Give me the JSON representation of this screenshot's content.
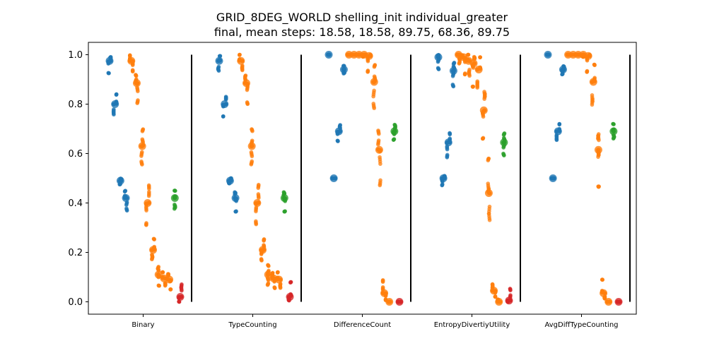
{
  "chart_data": {
    "type": "scatter",
    "title_lines": [
      "GRID_8DEG_WORLD shelling_init individual_greater",
      "final, mean steps: 18.58, 18.58, 89.75, 68.36, 89.75"
    ],
    "ylim": [
      -0.05,
      1.05
    ],
    "yticks": [
      "0.0",
      "0.2",
      "0.4",
      "0.6",
      "0.8",
      "1.0"
    ],
    "ytick_values": [
      0,
      0.2,
      0.4,
      0.6,
      0.8,
      1.0
    ],
    "categories": [
      "Binary",
      "TypeCounting",
      "DifferenceCount",
      "EntropyDivertiyUtility",
      "AvgDiffTypeCounting"
    ],
    "grid": false,
    "series_colors": {
      "blue": "#1f77b4",
      "orange": "#ff7f0e",
      "green": "#2ca02c",
      "red": "#d62728"
    },
    "groups": [
      {
        "category": "Binary",
        "strips": [
          {
            "color": "blue",
            "mean": 0.975,
            "min": 0.925,
            "max": 0.995
          },
          {
            "color": "blue",
            "mean": 0.8,
            "min": 0.75,
            "max": 0.84
          },
          {
            "color": "blue",
            "mean": 0.49,
            "min": 0.475,
            "max": 0.5
          },
          {
            "color": "blue",
            "mean": 0.42,
            "min": 0.365,
            "max": 0.45
          },
          {
            "color": "orange",
            "mean": 0.975,
            "min": 0.93,
            "max": 1.0
          },
          {
            "color": "orange",
            "mean": 0.885,
            "min": 0.8,
            "max": 0.92
          },
          {
            "color": "orange",
            "mean": 0.63,
            "min": 0.55,
            "max": 0.7
          },
          {
            "color": "orange",
            "mean": 0.4,
            "min": 0.31,
            "max": 0.48
          },
          {
            "color": "orange",
            "mean": 0.21,
            "min": 0.165,
            "max": 0.255
          },
          {
            "color": "orange",
            "mean": 0.11,
            "min": 0.065,
            "max": 0.15
          },
          {
            "color": "orange",
            "mean": 0.095,
            "min": 0.055,
            "max": 0.12
          },
          {
            "color": "orange",
            "mean": 0.09,
            "min": 0.05,
            "max": 0.12
          },
          {
            "color": "green",
            "mean": 0.42,
            "min": 0.365,
            "max": 0.45
          },
          {
            "color": "red",
            "mean": 0.02,
            "min": 0.0,
            "max": 0.08
          }
        ]
      },
      {
        "category": "TypeCounting",
        "strips": [
          {
            "color": "blue",
            "mean": 0.975,
            "min": 0.925,
            "max": 0.995
          },
          {
            "color": "blue",
            "mean": 0.8,
            "min": 0.75,
            "max": 0.84
          },
          {
            "color": "blue",
            "mean": 0.49,
            "min": 0.475,
            "max": 0.5
          },
          {
            "color": "blue",
            "mean": 0.42,
            "min": 0.365,
            "max": 0.45
          },
          {
            "color": "orange",
            "mean": 0.975,
            "min": 0.93,
            "max": 1.0
          },
          {
            "color": "orange",
            "mean": 0.885,
            "min": 0.8,
            "max": 0.92
          },
          {
            "color": "orange",
            "mean": 0.63,
            "min": 0.55,
            "max": 0.7
          },
          {
            "color": "orange",
            "mean": 0.4,
            "min": 0.31,
            "max": 0.48
          },
          {
            "color": "orange",
            "mean": 0.21,
            "min": 0.165,
            "max": 0.255
          },
          {
            "color": "orange",
            "mean": 0.11,
            "min": 0.065,
            "max": 0.15
          },
          {
            "color": "orange",
            "mean": 0.095,
            "min": 0.055,
            "max": 0.12
          },
          {
            "color": "orange",
            "mean": 0.09,
            "min": 0.05,
            "max": 0.12
          },
          {
            "color": "green",
            "mean": 0.42,
            "min": 0.365,
            "max": 0.45
          },
          {
            "color": "red",
            "mean": 0.02,
            "min": 0.0,
            "max": 0.08
          }
        ]
      },
      {
        "category": "DifferenceCount",
        "strips": [
          {
            "color": "blue",
            "mean": 1.0,
            "min": 1.0,
            "max": 1.0
          },
          {
            "color": "blue",
            "mean": 0.5,
            "min": 0.5,
            "max": 0.5
          },
          {
            "color": "blue",
            "mean": 0.69,
            "min": 0.65,
            "max": 0.72
          },
          {
            "color": "blue",
            "mean": 0.94,
            "min": 0.92,
            "max": 0.955
          },
          {
            "color": "orange",
            "mean": 1.0,
            "min": 1.0,
            "max": 1.0
          },
          {
            "color": "orange",
            "mean": 1.0,
            "min": 1.0,
            "max": 1.0
          },
          {
            "color": "orange",
            "mean": 1.0,
            "min": 1.0,
            "max": 1.0
          },
          {
            "color": "orange",
            "mean": 1.0,
            "min": 0.99,
            "max": 1.0
          },
          {
            "color": "orange",
            "mean": 0.995,
            "min": 0.93,
            "max": 1.0
          },
          {
            "color": "orange",
            "mean": 0.89,
            "min": 0.775,
            "max": 0.96
          },
          {
            "color": "orange",
            "mean": 0.615,
            "min": 0.465,
            "max": 0.7
          },
          {
            "color": "orange",
            "mean": 0.035,
            "min": 0.005,
            "max": 0.09
          },
          {
            "color": "orange",
            "mean": 0.0,
            "min": 0.0,
            "max": 0.0
          },
          {
            "color": "green",
            "mean": 0.69,
            "min": 0.655,
            "max": 0.72
          },
          {
            "color": "red",
            "mean": 0.0,
            "min": 0.0,
            "max": 0.0
          }
        ]
      },
      {
        "category": "EntropyDivertiyUtility",
        "strips": [
          {
            "color": "blue",
            "mean": 0.99,
            "min": 0.94,
            "max": 1.0
          },
          {
            "color": "blue",
            "mean": 0.5,
            "min": 0.47,
            "max": 0.51
          },
          {
            "color": "blue",
            "mean": 0.645,
            "min": 0.58,
            "max": 0.685
          },
          {
            "color": "blue",
            "mean": 0.935,
            "min": 0.87,
            "max": 0.97
          },
          {
            "color": "orange",
            "mean": 1.0,
            "min": 0.96,
            "max": 1.0
          },
          {
            "color": "orange",
            "mean": 0.99,
            "min": 0.92,
            "max": 1.0
          },
          {
            "color": "orange",
            "mean": 0.975,
            "min": 0.9,
            "max": 1.0
          },
          {
            "color": "orange",
            "mean": 0.965,
            "min": 0.87,
            "max": 1.0
          },
          {
            "color": "orange",
            "mean": 0.94,
            "min": 0.84,
            "max": 0.99
          },
          {
            "color": "orange",
            "mean": 0.775,
            "min": 0.66,
            "max": 0.87
          },
          {
            "color": "orange",
            "mean": 0.44,
            "min": 0.31,
            "max": 0.58
          },
          {
            "color": "orange",
            "mean": 0.045,
            "min": 0.02,
            "max": 0.075
          },
          {
            "color": "orange",
            "mean": 0.0,
            "min": 0.0,
            "max": 0.01
          },
          {
            "color": "green",
            "mean": 0.645,
            "min": 0.59,
            "max": 0.685
          },
          {
            "color": "red",
            "mean": 0.005,
            "min": 0.0,
            "max": 0.055
          }
        ]
      },
      {
        "category": "AvgDiffTypeCounting",
        "strips": [
          {
            "color": "blue",
            "mean": 1.0,
            "min": 1.0,
            "max": 1.0
          },
          {
            "color": "blue",
            "mean": 0.5,
            "min": 0.5,
            "max": 0.5
          },
          {
            "color": "blue",
            "mean": 0.69,
            "min": 0.65,
            "max": 0.72
          },
          {
            "color": "blue",
            "mean": 0.94,
            "min": 0.92,
            "max": 0.955
          },
          {
            "color": "orange",
            "mean": 1.0,
            "min": 1.0,
            "max": 1.0
          },
          {
            "color": "orange",
            "mean": 1.0,
            "min": 1.0,
            "max": 1.0
          },
          {
            "color": "orange",
            "mean": 1.0,
            "min": 1.0,
            "max": 1.0
          },
          {
            "color": "orange",
            "mean": 1.0,
            "min": 0.99,
            "max": 1.0
          },
          {
            "color": "orange",
            "mean": 0.995,
            "min": 0.93,
            "max": 1.0
          },
          {
            "color": "orange",
            "mean": 0.89,
            "min": 0.775,
            "max": 0.96
          },
          {
            "color": "orange",
            "mean": 0.615,
            "min": 0.465,
            "max": 0.7
          },
          {
            "color": "orange",
            "mean": 0.035,
            "min": 0.005,
            "max": 0.09
          },
          {
            "color": "orange",
            "mean": 0.0,
            "min": 0.0,
            "max": 0.0
          },
          {
            "color": "green",
            "mean": 0.69,
            "min": 0.655,
            "max": 0.72
          },
          {
            "color": "red",
            "mean": 0.0,
            "min": 0.0,
            "max": 0.0
          }
        ]
      }
    ]
  }
}
